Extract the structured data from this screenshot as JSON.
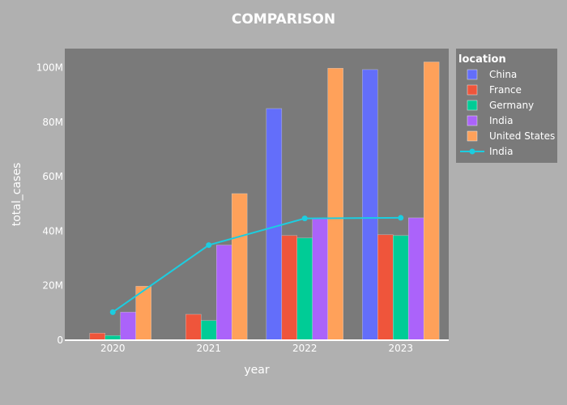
{
  "chart_data": {
    "type": "bar",
    "title": "COMPARISON",
    "xlabel": "year",
    "ylabel": "total_cases",
    "categories": [
      "2020",
      "2021",
      "2022",
      "2023"
    ],
    "ylim": [
      0,
      107000000
    ],
    "yticks": [
      0,
      20000000,
      40000000,
      60000000,
      80000000,
      100000000
    ],
    "ytick_labels": [
      "0",
      "20M",
      "40M",
      "60M",
      "80M",
      "100M"
    ],
    "grid": false,
    "legend": {
      "title": "location",
      "placement": "top-right"
    },
    "series": [
      {
        "name": "China",
        "kind": "bar",
        "color": "#636efa",
        "values": [
          0,
          0,
          85000000,
          99300000
        ]
      },
      {
        "name": "France",
        "kind": "bar",
        "color": "#ef553b",
        "values": [
          2600000,
          9500000,
          38400000,
          38700000
        ]
      },
      {
        "name": "Germany",
        "kind": "bar",
        "color": "#00cc96",
        "values": [
          1700000,
          7200000,
          37500000,
          38400000
        ]
      },
      {
        "name": "India",
        "kind": "bar",
        "color": "#ab63fa",
        "values": [
          10300000,
          34900000,
          44700000,
          44900000
        ]
      },
      {
        "name": "United States",
        "kind": "bar",
        "color": "#ffa15a",
        "values": [
          19800000,
          53800000,
          99800000,
          102100000
        ]
      },
      {
        "name": "India",
        "kind": "line",
        "color": "#1ccde0",
        "values": [
          10300000,
          34900000,
          44700000,
          44900000
        ]
      }
    ],
    "colors": {
      "page_background": "#b0b0b0",
      "plot_background": "#7a7a7a",
      "legend_background": "#7a7a7a"
    }
  }
}
